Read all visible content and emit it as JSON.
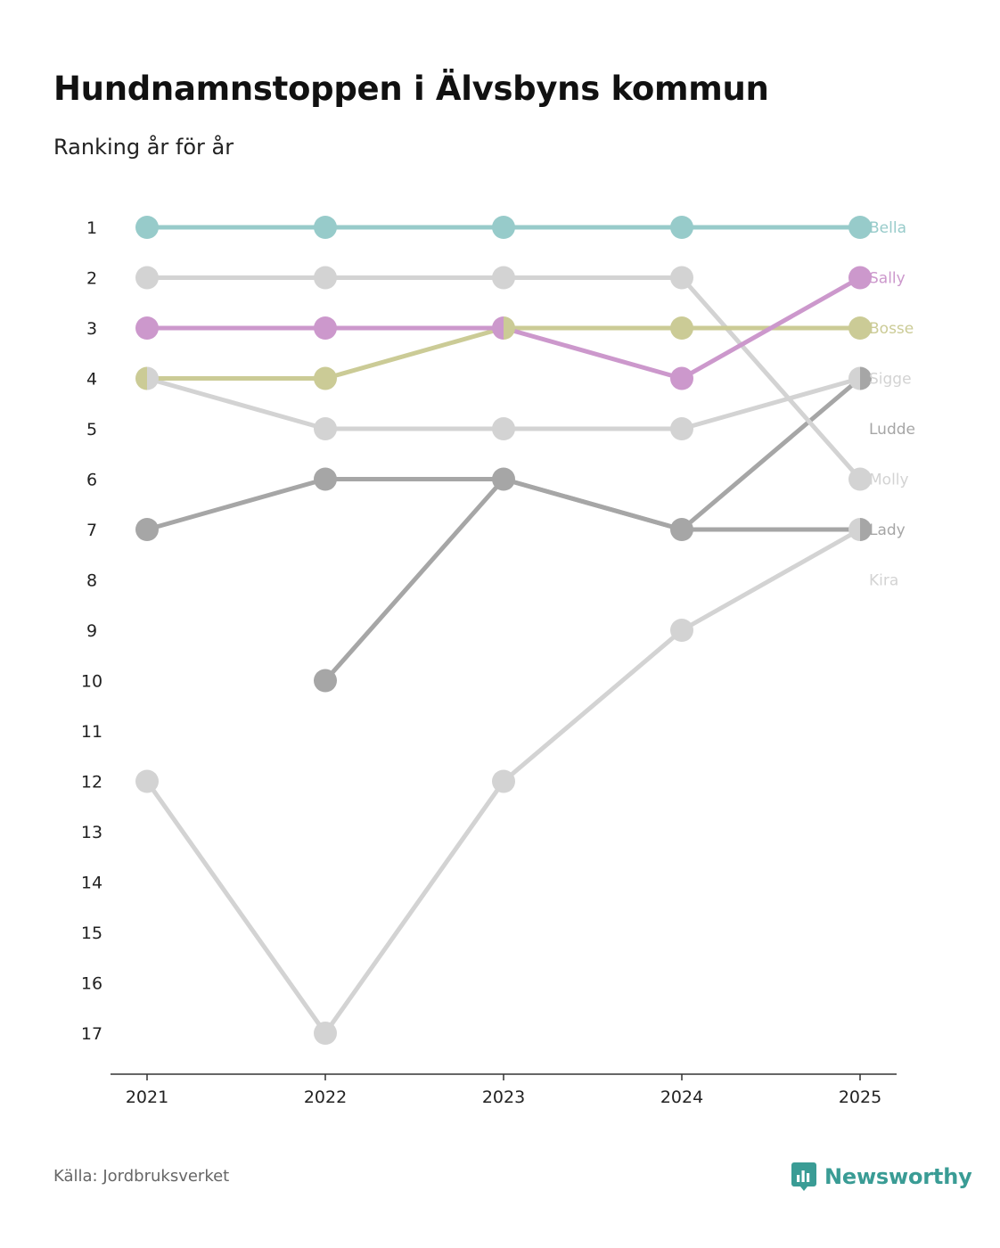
{
  "title": "Hundnamnstoppen i Älvsbyns kommun",
  "subtitle": "Ranking år för år",
  "source": "Källa: Jordbruksverket",
  "brand": {
    "name": "Newsworthy",
    "icon": "newsworthy-logo-icon",
    "color": "#3a9c95"
  },
  "chart_data": {
    "type": "line",
    "title": "Hundnamnstoppen i Älvsbyns kommun",
    "subtitle": "Ranking år för år",
    "x": [
      2021,
      2022,
      2023,
      2024,
      2025
    ],
    "x_labels": [
      "2021",
      "2022",
      "2023",
      "2024",
      "2025"
    ],
    "y_ticks": [
      1,
      2,
      3,
      4,
      5,
      6,
      7,
      8,
      9,
      10,
      11,
      12,
      13,
      14,
      15,
      16,
      17
    ],
    "ylim": [
      1,
      17
    ],
    "y_inverted": true,
    "series": [
      {
        "name": "Ludde",
        "color": "#a6a6a6",
        "values": [
          null,
          10,
          6,
          7,
          4
        ]
      },
      {
        "name": "Lady",
        "color": "#a6a6a6",
        "values": [
          7,
          6,
          6,
          7,
          7
        ]
      },
      {
        "name": "Molly",
        "color": "#d3d3d3",
        "values": [
          2,
          2,
          2,
          2,
          6
        ]
      },
      {
        "name": "Sigge",
        "color": "#d3d3d3",
        "values": [
          4,
          5,
          5,
          5,
          4
        ]
      },
      {
        "name": "Kira",
        "color": "#d3d3d3",
        "values": [
          12,
          17,
          12,
          9,
          7
        ]
      },
      {
        "name": "Bosse",
        "color": "#cbcb96",
        "values": [
          4,
          4,
          3,
          3,
          3
        ]
      },
      {
        "name": "Sally",
        "color": "#cc98cc",
        "values": [
          3,
          3,
          3,
          4,
          2
        ]
      },
      {
        "name": "Bella",
        "color": "#97cbca",
        "values": [
          1,
          1,
          1,
          1,
          1
        ]
      }
    ],
    "end_labels": [
      {
        "name": "Bella",
        "rank": 1,
        "color": "#97cbca"
      },
      {
        "name": "Sally",
        "rank": 2,
        "color": "#cc98cc"
      },
      {
        "name": "Bosse",
        "rank": 3,
        "color": "#cbcb96"
      },
      {
        "name": "Sigge",
        "rank": 4,
        "color": "#d3d3d3"
      },
      {
        "name": "Ludde",
        "rank": 5,
        "color": "#a6a6a6"
      },
      {
        "name": "Molly",
        "rank": 6,
        "color": "#d3d3d3"
      },
      {
        "name": "Lady",
        "rank": 7,
        "color": "#a6a6a6"
      },
      {
        "name": "Kira",
        "rank": 8,
        "color": "#d3d3d3"
      }
    ]
  }
}
